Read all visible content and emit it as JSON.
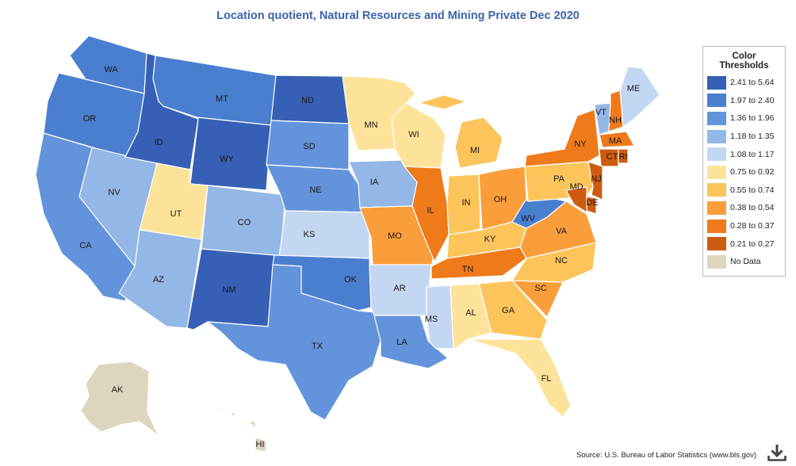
{
  "title": "Location quotient, Natural Resources and Mining Private Dec 2020",
  "legend": {
    "title": "Color Thresholds",
    "items": [
      {
        "label": "2.41 to 5.64",
        "color": "#3560b5"
      },
      {
        "label": "1.97 to 2.40",
        "color": "#4a7fd0"
      },
      {
        "label": "1.36 to 1.96",
        "color": "#6394db"
      },
      {
        "label": "1.18 to 1.35",
        "color": "#93b7e6"
      },
      {
        "label": "1.08 to 1.17",
        "color": "#c4d7f2"
      },
      {
        "label": "0.75 to 0.92",
        "color": "#fde39a"
      },
      {
        "label": "0.55 to 0.74",
        "color": "#fcc45a"
      },
      {
        "label": "0.38 to 0.54",
        "color": "#fa9e3c"
      },
      {
        "label": "0.28 to 0.37",
        "color": "#ef7a1a"
      },
      {
        "label": "0.21 to 0.27",
        "color": "#cd5c10"
      },
      {
        "label": "No Data",
        "color": "#ddd6be"
      }
    ]
  },
  "states": [
    {
      "abbr": "WA",
      "bin": 1
    },
    {
      "abbr": "OR",
      "bin": 1
    },
    {
      "abbr": "CA",
      "bin": 2
    },
    {
      "abbr": "NV",
      "bin": 3
    },
    {
      "abbr": "ID",
      "bin": 0
    },
    {
      "abbr": "MT",
      "bin": 1
    },
    {
      "abbr": "WY",
      "bin": 0
    },
    {
      "abbr": "UT",
      "bin": 5
    },
    {
      "abbr": "AZ",
      "bin": 3
    },
    {
      "abbr": "CO",
      "bin": 3
    },
    {
      "abbr": "NM",
      "bin": 0
    },
    {
      "abbr": "ND",
      "bin": 0
    },
    {
      "abbr": "SD",
      "bin": 2
    },
    {
      "abbr": "NE",
      "bin": 2
    },
    {
      "abbr": "KS",
      "bin": 4
    },
    {
      "abbr": "OK",
      "bin": 1
    },
    {
      "abbr": "TX",
      "bin": 2
    },
    {
      "abbr": "MN",
      "bin": 5
    },
    {
      "abbr": "IA",
      "bin": 3
    },
    {
      "abbr": "MO",
      "bin": 7
    },
    {
      "abbr": "AR",
      "bin": 4
    },
    {
      "abbr": "LA",
      "bin": 2
    },
    {
      "abbr": "WI",
      "bin": 5
    },
    {
      "abbr": "IL",
      "bin": 8
    },
    {
      "abbr": "MI",
      "bin": 6
    },
    {
      "abbr": "IN",
      "bin": 6
    },
    {
      "abbr": "OH",
      "bin": 7
    },
    {
      "abbr": "KY",
      "bin": 6
    },
    {
      "abbr": "TN",
      "bin": 8
    },
    {
      "abbr": "MS",
      "bin": 4
    },
    {
      "abbr": "AL",
      "bin": 5
    },
    {
      "abbr": "GA",
      "bin": 6
    },
    {
      "abbr": "FL",
      "bin": 5
    },
    {
      "abbr": "SC",
      "bin": 7
    },
    {
      "abbr": "NC",
      "bin": 6
    },
    {
      "abbr": "VA",
      "bin": 7
    },
    {
      "abbr": "WV",
      "bin": 1
    },
    {
      "abbr": "PA",
      "bin": 6
    },
    {
      "abbr": "NY",
      "bin": 8
    },
    {
      "abbr": "VT",
      "bin": 3
    },
    {
      "abbr": "NH",
      "bin": 8
    },
    {
      "abbr": "ME",
      "bin": 4
    },
    {
      "abbr": "MA",
      "bin": 8
    },
    {
      "abbr": "CT",
      "bin": 9
    },
    {
      "abbr": "RI",
      "bin": 9
    },
    {
      "abbr": "NJ",
      "bin": 9
    },
    {
      "abbr": "DE",
      "bin": 9
    },
    {
      "abbr": "MD",
      "bin": 9
    },
    {
      "abbr": "AK",
      "bin": 10
    },
    {
      "abbr": "HI",
      "bin": 10
    }
  ],
  "source": "Source: U.S. Bureau of Labor Statistics (www.bls.gov)",
  "download_icon": "download-icon"
}
